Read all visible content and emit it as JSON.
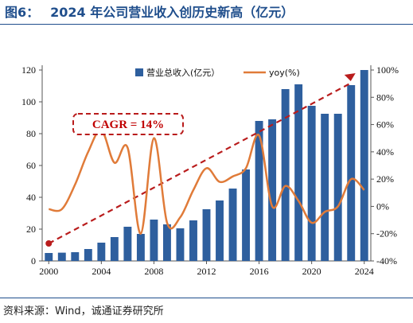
{
  "title": {
    "number": "图6：",
    "text": "2024 年公司营业收入创历史新高（亿元）"
  },
  "source": "资料来源：Wind，诚通证券研究所",
  "colors": {
    "title": "#1f4e8c",
    "bars": "#2e5f9e",
    "line": "#e07b39",
    "trend": "#b91c1c"
  },
  "chart_data": {
    "type": "bar",
    "categories": [
      "2000",
      "2001",
      "2002",
      "2003",
      "2004",
      "2005",
      "2006",
      "2007",
      "2008",
      "2009",
      "2010",
      "2011",
      "2012",
      "2013",
      "2014",
      "2015",
      "2016",
      "2017",
      "2018",
      "2019",
      "2020",
      "2021",
      "2022",
      "2023",
      "2024"
    ],
    "x_tick_labels": [
      "2000",
      "2004",
      "2008",
      "2012",
      "2016",
      "2020",
      "2024"
    ],
    "series": [
      {
        "name": "营业总收入(亿元）",
        "type": "bar",
        "axis": "left",
        "values": [
          5,
          5.2,
          5.5,
          7.5,
          11.5,
          15,
          21.5,
          17,
          26,
          23,
          20.5,
          25.5,
          32.5,
          38,
          45.5,
          57.5,
          88,
          89,
          108,
          111,
          97.5,
          92.5,
          92.5,
          110.5,
          120
        ]
      },
      {
        "name": "yoy(%)",
        "type": "line",
        "axis": "right",
        "values": [
          -2,
          -2,
          16,
          40,
          56,
          32,
          43,
          -20,
          50,
          -12,
          -8,
          12,
          28,
          18,
          22,
          28,
          52,
          0,
          15,
          4,
          -12,
          -4,
          0,
          20,
          12
        ]
      }
    ],
    "left_axis": {
      "ylim": [
        0,
        120
      ],
      "ticks": [
        0,
        20,
        40,
        60,
        80,
        100,
        120
      ]
    },
    "right_axis": {
      "ylim": [
        -40,
        100
      ],
      "ticks": [
        "-40%",
        "-20%",
        "0%",
        "20%",
        "40%",
        "60%",
        "80%",
        "100%"
      ]
    },
    "annotation": {
      "label": "CAGR = 14%",
      "trend_start": {
        "x": "2000",
        "y": 11
      },
      "trend_end": {
        "x": "2024",
        "y": 116
      }
    },
    "legend_position": "top-center",
    "grid": false
  }
}
